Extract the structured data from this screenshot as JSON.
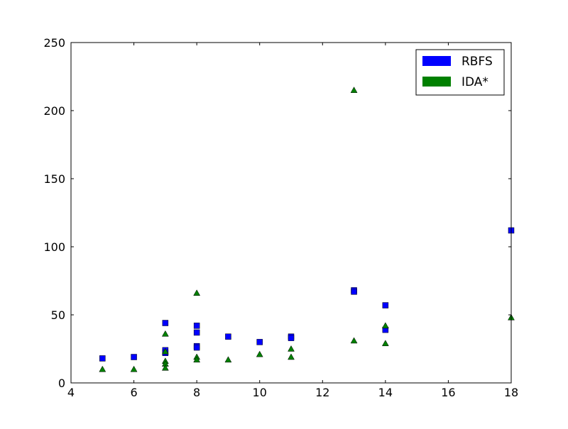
{
  "chart_data": {
    "type": "scatter",
    "title": "",
    "xlabel": "",
    "ylabel": "",
    "xlim": [
      4,
      18
    ],
    "ylim": [
      0,
      250
    ],
    "xticks": [
      4,
      6,
      8,
      10,
      12,
      14,
      16,
      18
    ],
    "yticks": [
      0,
      50,
      100,
      150,
      200,
      250
    ],
    "grid": false,
    "legend_position": "top-right",
    "series": [
      {
        "name": "RBFS",
        "marker": "square",
        "color": "#0000ff",
        "points": [
          [
            5,
            18
          ],
          [
            6,
            19
          ],
          [
            7,
            44
          ],
          [
            7,
            24
          ],
          [
            7,
            22
          ],
          [
            8,
            42
          ],
          [
            8,
            37
          ],
          [
            8,
            27
          ],
          [
            8,
            26
          ],
          [
            9,
            34
          ],
          [
            10,
            30
          ],
          [
            11,
            34
          ],
          [
            11,
            33
          ],
          [
            13,
            68
          ],
          [
            13,
            67
          ],
          [
            14,
            57
          ],
          [
            14,
            39
          ],
          [
            18,
            112
          ]
        ]
      },
      {
        "name": "IDA*",
        "marker": "triangle",
        "color": "#008000",
        "points": [
          [
            5,
            10
          ],
          [
            6,
            10
          ],
          [
            7,
            36
          ],
          [
            7,
            23
          ],
          [
            7,
            16
          ],
          [
            7,
            14
          ],
          [
            7,
            11
          ],
          [
            8,
            66
          ],
          [
            8,
            19
          ],
          [
            8,
            17
          ],
          [
            9,
            17
          ],
          [
            10,
            21
          ],
          [
            11,
            25
          ],
          [
            11,
            19
          ],
          [
            13,
            215
          ],
          [
            13,
            31
          ],
          [
            14,
            42
          ],
          [
            14,
            29
          ],
          [
            18,
            48
          ]
        ]
      }
    ]
  }
}
